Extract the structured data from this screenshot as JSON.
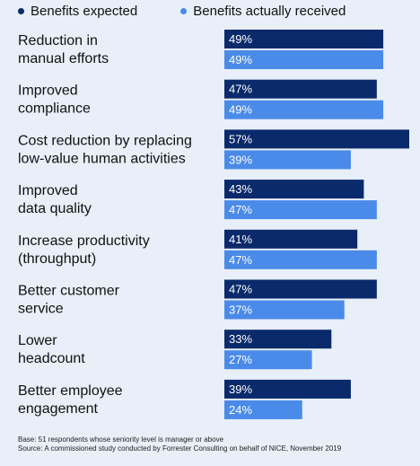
{
  "colors": {
    "expected": "#0a2a6b",
    "received": "#4a8ae8",
    "background": "#e8eff8"
  },
  "legend": [
    {
      "label": "Benefits expected"
    },
    {
      "label": "Benefits actually received"
    }
  ],
  "chart_data": {
    "type": "bar",
    "orientation": "horizontal",
    "categories": [
      [
        "Reduction in",
        "manual efforts"
      ],
      [
        "Improved",
        "compliance"
      ],
      [
        "Cost reduction by replacing",
        "low-value human activities"
      ],
      [
        "Improved",
        "data quality"
      ],
      [
        "Increase productivity",
        "(throughput)"
      ],
      [
        "Better customer",
        "service"
      ],
      [
        "Lower",
        "headcount"
      ],
      [
        "Better employee",
        "engagement"
      ]
    ],
    "series": [
      {
        "name": "Benefits expected",
        "values": [
          49,
          47,
          57,
          43,
          41,
          47,
          33,
          39
        ]
      },
      {
        "name": "Benefits actually received",
        "values": [
          49,
          49,
          39,
          47,
          47,
          37,
          27,
          24
        ]
      }
    ],
    "value_suffix": "%",
    "xlim": [
      0,
      57
    ],
    "grid": false,
    "legend_position": "top-left"
  },
  "footnote": {
    "base": "Base: 51 respondents whose seniority level is manager or above",
    "source": "Source: A commissioned study conducted by Forrester Consulting on behalf of NICE, November 2019"
  }
}
